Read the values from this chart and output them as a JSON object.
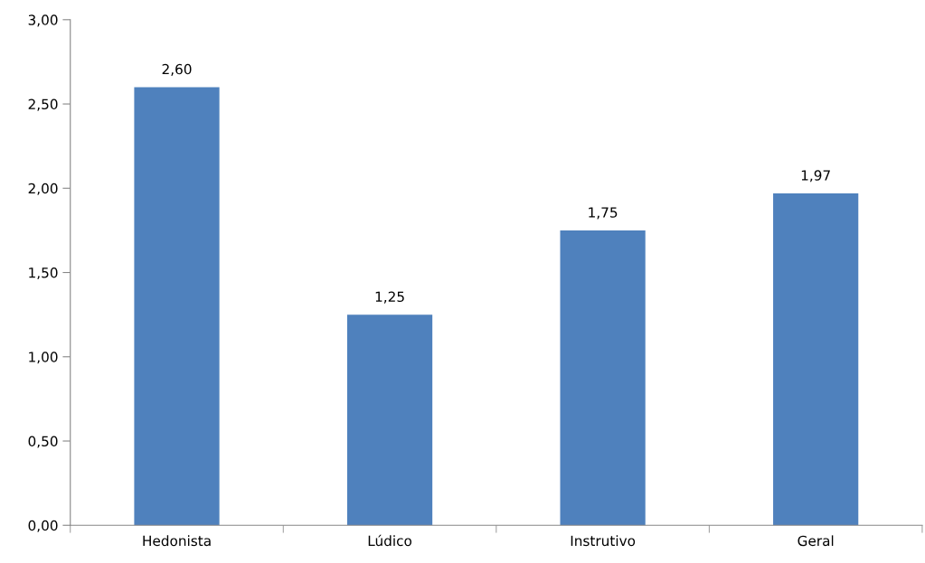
{
  "chart_data": {
    "type": "bar",
    "categories": [
      "Hedonista",
      "Lúdico",
      "Instrutivo",
      "Geral"
    ],
    "values": [
      2.6,
      1.25,
      1.75,
      1.97
    ],
    "value_labels": [
      "2,60",
      "1,25",
      "1,75",
      "1,97"
    ],
    "color": "#4f81bd",
    "ylim": [
      0,
      3
    ],
    "yticks": [
      {
        "value": 0,
        "label": "0,00"
      },
      {
        "value": 0.5,
        "label": "0,50"
      },
      {
        "value": 1,
        "label": "1,00"
      },
      {
        "value": 1.5,
        "label": "1,50"
      },
      {
        "value": 2,
        "label": "2,00"
      },
      {
        "value": 2.5,
        "label": "2,50"
      },
      {
        "value": 3,
        "label": "3,00"
      }
    ],
    "grid": false,
    "legend": false
  }
}
